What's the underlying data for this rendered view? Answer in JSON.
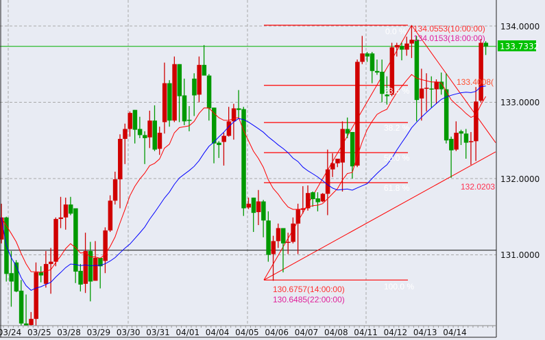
{
  "chart_data": {
    "type": "candlestick",
    "colors": {
      "background": "#e8ebf3",
      "up_candle": "#d00000",
      "down_candle": "#009900",
      "ma_fast": "#ff0000",
      "ma_slow": "#0000ff",
      "current_price_line": "#00b000",
      "fib_lines": "#ff0000",
      "grid": "#a8a8a8"
    },
    "ylim": [
      129.9,
      134.3
    ],
    "y_ticks": [
      "134.0000",
      "133.0000",
      "132.0000",
      "131.0000"
    ],
    "y_tick_values": [
      134,
      133,
      132,
      131
    ],
    "x_tick_labels": [
      "03/24",
      "03/25",
      "03/28",
      "03/29",
      "03/30",
      "03/31",
      "04/01",
      "04/04",
      "04/05",
      "04/06",
      "04/07",
      "04/08",
      "04/11",
      "04/12",
      "04/13",
      "04/14"
    ],
    "candles_per_label": 6,
    "grid": true,
    "current_price": {
      "value": 133.7332,
      "label": "133.7332"
    },
    "horizontal_line": 131.06,
    "moving_averages": [
      {
        "type": "EMA",
        "period": 13,
        "color": "#ff0000"
      },
      {
        "type": "SMA",
        "period": 26,
        "color": "#0000ff"
      }
    ],
    "ohlc": [
      [
        131.2,
        131.67,
        131.15,
        131.49
      ],
      [
        131.49,
        131.5,
        130.65,
        130.75
      ],
      [
        130.76,
        131.05,
        130.32,
        130.65
      ],
      [
        130.9,
        130.93,
        130.51,
        130.52
      ],
      [
        130.53,
        130.67,
        130.07,
        130.1
      ],
      [
        130.1,
        130.48,
        130.07,
        130.07
      ],
      [
        130.08,
        130.25,
        130.07,
        130.16
      ],
      [
        130.16,
        130.9,
        130.07,
        130.77
      ],
      [
        130.77,
        130.85,
        130.64,
        130.73
      ],
      [
        130.62,
        131.05,
        130.57,
        130.88
      ],
      [
        130.88,
        131.09,
        130.49,
        130.91
      ],
      [
        130.91,
        131.49,
        130.85,
        131.47
      ],
      [
        131.47,
        131.76,
        131.35,
        131.49
      ],
      [
        131.49,
        131.75,
        131.33,
        131.66
      ],
      [
        131.66,
        131.76,
        131.52,
        131.54
      ],
      [
        131.61,
        131.61,
        130.63,
        130.78
      ],
      [
        130.79,
        130.88,
        130.52,
        130.61
      ],
      [
        130.62,
        131.29,
        130.5,
        131.05
      ],
      [
        131.05,
        131.17,
        130.39,
        130.65
      ],
      [
        130.66,
        131.18,
        130.66,
        130.96
      ],
      [
        130.96,
        130.96,
        130.56,
        130.85
      ],
      [
        130.92,
        131.36,
        130.76,
        131.32
      ],
      [
        131.32,
        131.78,
        131.3,
        131.71
      ],
      [
        131.71,
        132.09,
        131.66,
        131.99
      ],
      [
        131.99,
        132.58,
        131.61,
        132.52
      ],
      [
        132.52,
        132.72,
        132.19,
        132.65
      ],
      [
        132.65,
        132.88,
        132.55,
        132.86
      ],
      [
        132.9,
        132.9,
        132.46,
        132.64
      ],
      [
        132.65,
        132.81,
        132.53,
        132.57
      ],
      [
        132.57,
        132.62,
        132.19,
        132.53
      ],
      [
        132.54,
        132.89,
        132.4,
        132.76
      ],
      [
        132.76,
        132.96,
        132.36,
        132.38
      ],
      [
        132.39,
        132.68,
        132.31,
        132.6
      ],
      [
        132.74,
        133.52,
        132.59,
        133.25
      ],
      [
        133.25,
        133.29,
        132.68,
        132.76
      ],
      [
        132.76,
        133.6,
        132.74,
        133.5
      ],
      [
        133.5,
        133.5,
        132.74,
        133.08
      ],
      [
        133.09,
        133.31,
        132.7,
        132.75
      ],
      [
        132.77,
        132.95,
        132.62,
        132.76
      ],
      [
        133.31,
        133.38,
        132.82,
        133.09
      ],
      [
        133.1,
        133.6,
        133.0,
        133.49
      ],
      [
        133.49,
        133.75,
        133.35,
        133.35
      ],
      [
        133.35,
        133.37,
        132.76,
        132.92
      ],
      [
        132.93,
        132.93,
        132.2,
        132.46
      ],
      [
        132.47,
        132.49,
        132.27,
        132.44
      ],
      [
        132.48,
        132.6,
        132.17,
        132.56
      ],
      [
        132.56,
        132.94,
        132.55,
        132.75
      ],
      [
        132.75,
        132.98,
        132.51,
        132.92
      ],
      [
        132.92,
        133.16,
        132.78,
        132.9
      ],
      [
        132.91,
        132.94,
        131.51,
        131.61
      ],
      [
        131.62,
        131.75,
        131.6,
        131.67
      ],
      [
        131.75,
        131.75,
        131.3,
        131.55
      ],
      [
        131.56,
        131.85,
        131.39,
        131.7
      ],
      [
        131.7,
        131.72,
        131.23,
        131.45
      ],
      [
        131.45,
        131.57,
        130.91,
        131.0
      ],
      [
        131.01,
        131.25,
        130.66,
        131.18
      ],
      [
        131.18,
        131.41,
        131.09,
        131.35
      ],
      [
        131.35,
        131.35,
        130.77,
        131.15
      ],
      [
        131.16,
        131.29,
        131.01,
        131.17
      ],
      [
        131.17,
        131.49,
        131.15,
        131.41
      ],
      [
        131.41,
        131.67,
        131.01,
        131.6
      ],
      [
        131.59,
        131.9,
        131.54,
        131.61
      ],
      [
        131.61,
        131.91,
        131.58,
        131.81
      ],
      [
        131.82,
        131.83,
        131.63,
        131.73
      ],
      [
        131.74,
        131.82,
        131.57,
        131.69
      ],
      [
        131.7,
        131.81,
        131.69,
        131.8
      ],
      [
        131.8,
        132.38,
        131.52,
        132.12
      ],
      [
        132.12,
        132.33,
        132.02,
        132.2
      ],
      [
        132.2,
        132.26,
        132.15,
        132.26
      ],
      [
        132.21,
        132.75,
        131.83,
        132.65
      ],
      [
        132.65,
        132.8,
        132.53,
        132.59
      ],
      [
        132.61,
        132.61,
        132.0,
        132.16
      ],
      [
        132.17,
        133.56,
        132.15,
        133.53
      ],
      [
        133.53,
        133.87,
        133.5,
        133.64
      ],
      [
        133.64,
        133.66,
        133.53,
        133.6
      ],
      [
        133.64,
        133.66,
        133.25,
        133.41
      ],
      [
        133.41,
        133.56,
        133.36,
        133.39
      ],
      [
        133.4,
        133.56,
        133.0,
        133.11
      ],
      [
        133.1,
        133.34,
        132.97,
        133.08
      ],
      [
        133.1,
        133.78,
        133.08,
        133.72
      ],
      [
        133.72,
        133.78,
        133.6,
        133.75
      ],
      [
        133.74,
        133.78,
        133.55,
        133.69
      ],
      [
        133.69,
        133.86,
        133.61,
        133.77
      ],
      [
        133.77,
        134.01,
        133.58,
        133.82
      ],
      [
        133.82,
        133.87,
        132.75,
        133.03
      ],
      [
        133.05,
        133.44,
        132.76,
        133.18
      ],
      [
        133.18,
        133.38,
        132.88,
        133.19
      ],
      [
        133.18,
        133.34,
        132.93,
        133.17
      ],
      [
        133.17,
        133.3,
        132.98,
        133.27
      ],
      [
        133.27,
        133.39,
        133.1,
        133.17
      ],
      [
        133.17,
        133.38,
        132.46,
        132.5
      ],
      [
        132.52,
        132.55,
        132.01,
        132.37
      ],
      [
        132.38,
        132.75,
        132.36,
        132.6
      ],
      [
        132.62,
        132.64,
        132.44,
        132.59
      ],
      [
        132.59,
        132.65,
        132.26,
        132.47
      ],
      [
        132.48,
        132.61,
        132.18,
        132.49
      ],
      [
        132.49,
        133.2,
        132.23,
        133.01
      ],
      [
        133.02,
        133.83,
        133.0,
        133.78
      ],
      [
        133.78,
        133.8,
        133.62,
        133.73
      ]
    ],
    "fibonacci": {
      "high": 134.01,
      "low": 130.67,
      "levels": [
        {
          "ratio": 0.0,
          "label": "0.0 %"
        },
        {
          "ratio": 0.236,
          "label": "23.6 %"
        },
        {
          "ratio": 0.382,
          "label": "38.2 %"
        },
        {
          "ratio": 0.5,
          "label": "50.0 %"
        },
        {
          "ratio": 0.618,
          "label": "61.8 %"
        },
        {
          "ratio": 1.0,
          "label": "100.0 %"
        }
      ]
    },
    "annotations": {
      "high_label_1": "134.0553(10:00:00)",
      "high_label_2": "134.0153(18:00:00)",
      "low_label_1": "130.6757(14:00:00)",
      "low_label_2": "130.6485(22:00:00)",
      "downtrend_label": "133.4008(",
      "uptrend_label": "132.0203"
    },
    "trendlines": [
      {
        "name": "fib-diagonal",
        "from": [
          55,
          130.67
        ],
        "to": [
          83,
          134.01
        ]
      },
      {
        "name": "downtrend",
        "from": [
          83,
          134.01
        ],
        "to": [
          100,
          132.47
        ]
      },
      {
        "name": "uptrend",
        "from": [
          54,
          130.67
        ],
        "to": [
          100,
          132.35
        ]
      }
    ]
  }
}
